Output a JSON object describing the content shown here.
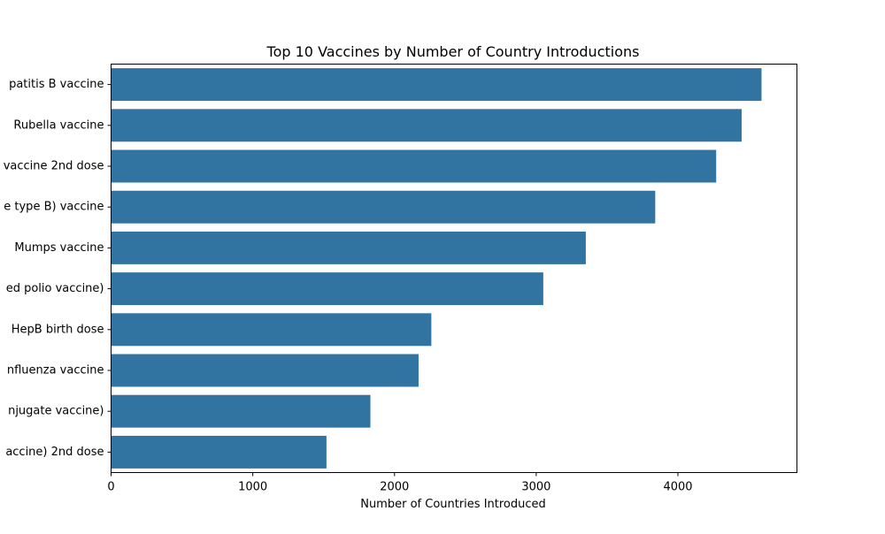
{
  "chart_data": {
    "type": "bar",
    "orientation": "horizontal",
    "title": "Top 10 Vaccines by Number of Country Introductions",
    "xlabel": "Number of Countries Introduced",
    "ylabel": "",
    "categories": [
      "patitis B vaccine",
      "Rubella vaccine",
      "vaccine 2nd dose",
      "e type B) vaccine",
      "Mumps vaccine",
      "ed polio vaccine)",
      "HepB birth dose",
      "nfluenza vaccine",
      "njugate vaccine)",
      "accine) 2nd dose"
    ],
    "values": [
      4590,
      4450,
      4270,
      3840,
      3350,
      3050,
      2260,
      2170,
      1830,
      1520
    ],
    "xlim": [
      0,
      4840
    ],
    "xticks": [
      0,
      1000,
      2000,
      3000,
      4000
    ],
    "grid": false,
    "bar_color": "#3274a1"
  }
}
